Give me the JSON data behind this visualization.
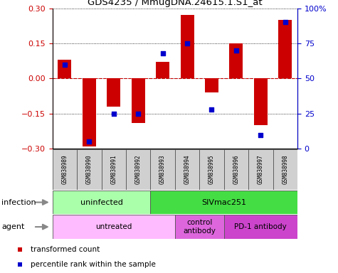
{
  "title": "GDS4235 / MmugDNA.24615.1.S1_at",
  "samples": [
    "GSM838989",
    "GSM838990",
    "GSM838991",
    "GSM838992",
    "GSM838993",
    "GSM838994",
    "GSM838995",
    "GSM838996",
    "GSM838997",
    "GSM838998"
  ],
  "transformed_counts": [
    0.08,
    -0.29,
    -0.12,
    -0.19,
    0.07,
    0.27,
    -0.06,
    0.15,
    -0.2,
    0.25
  ],
  "percentile_ranks": [
    60,
    5,
    25,
    25,
    68,
    75,
    28,
    70,
    10,
    90
  ],
  "ylim": [
    -0.3,
    0.3
  ],
  "yticks": [
    -0.3,
    -0.15,
    0,
    0.15,
    0.3
  ],
  "right_yticks": [
    0,
    25,
    50,
    75,
    100
  ],
  "bar_color": "#cc0000",
  "dot_color": "#0000cc",
  "hline_color": "#cc0000",
  "infection_groups": [
    {
      "label": "uninfected",
      "start": 0,
      "end": 4,
      "color": "#aaffaa"
    },
    {
      "label": "SIVmac251",
      "start": 4,
      "end": 10,
      "color": "#44dd44"
    }
  ],
  "agent_groups": [
    {
      "label": "untreated",
      "start": 0,
      "end": 5,
      "color": "#ffbbff"
    },
    {
      "label": "control\nantibody",
      "start": 5,
      "end": 7,
      "color": "#dd66dd"
    },
    {
      "label": "PD-1 antibody",
      "start": 7,
      "end": 10,
      "color": "#cc44cc"
    }
  ],
  "legend_items": [
    {
      "label": "transformed count",
      "color": "#cc0000"
    },
    {
      "label": "percentile rank within the sample",
      "color": "#0000cc"
    }
  ],
  "infection_label": "infection",
  "agent_label": "agent",
  "sample_bg": "#d0d0d0"
}
